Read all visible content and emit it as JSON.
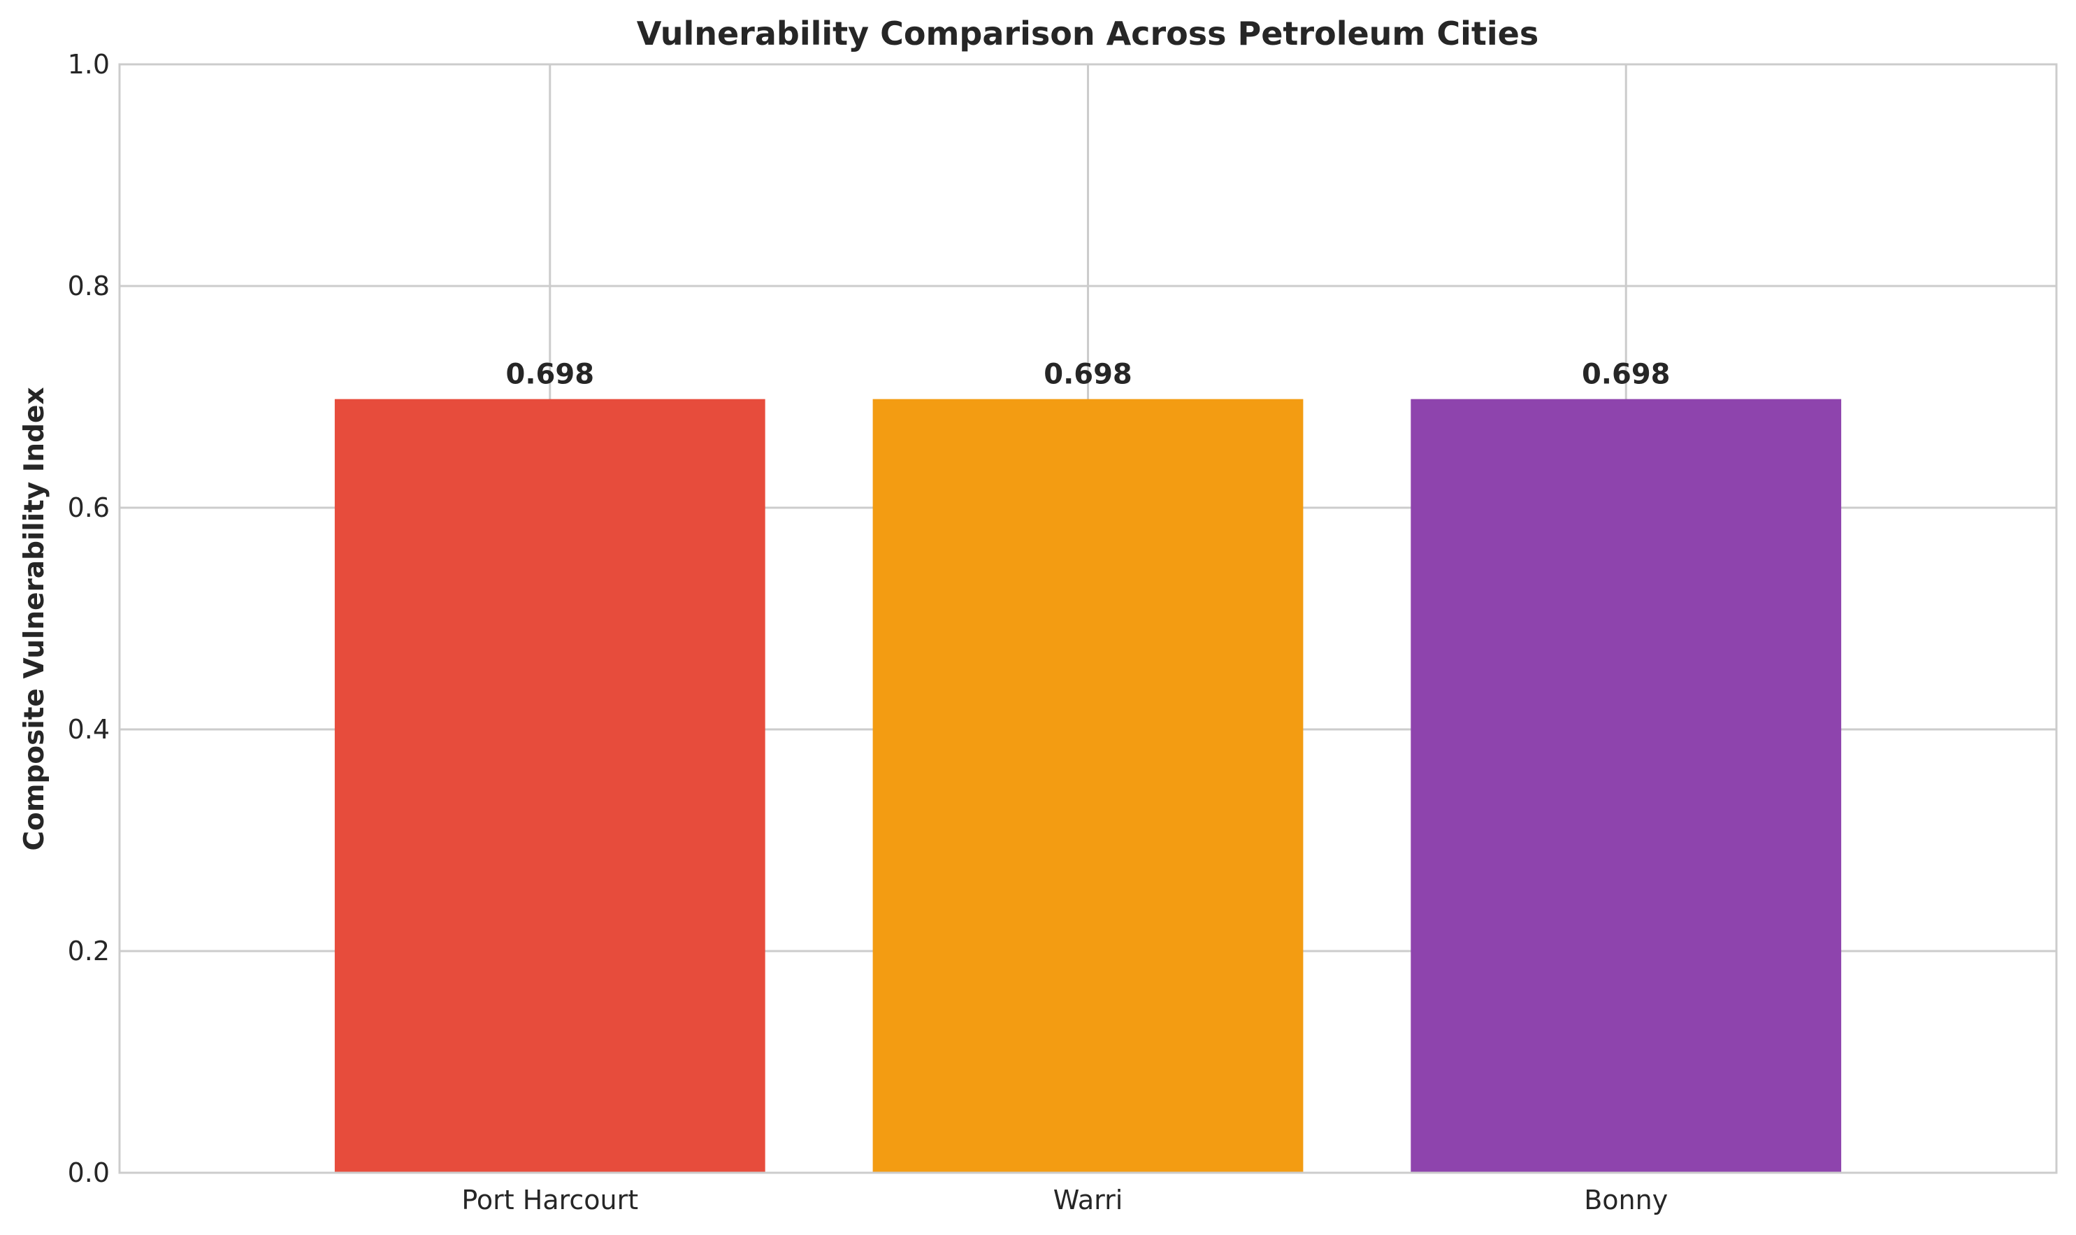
{
  "chart_data": {
    "type": "bar",
    "title": "Vulnerability Comparison Across Petroleum Cities",
    "xlabel": "",
    "ylabel": "Composite Vulnerability Index",
    "categories": [
      "Port Harcourt",
      "Warri",
      "Bonny"
    ],
    "values": [
      0.698,
      0.698,
      0.698
    ],
    "value_labels": [
      "0.698",
      "0.698",
      "0.698"
    ],
    "colors": [
      "#e74c3c",
      "#f39c12",
      "#8e44ad"
    ],
    "ylim": [
      0,
      1.0
    ],
    "yticks": [
      0.0,
      0.2,
      0.4,
      0.6,
      0.8,
      1.0
    ],
    "ytick_labels": [
      "0.0",
      "0.2",
      "0.4",
      "0.6",
      "0.8",
      "1.0"
    ],
    "grid": true,
    "legend": "none"
  }
}
